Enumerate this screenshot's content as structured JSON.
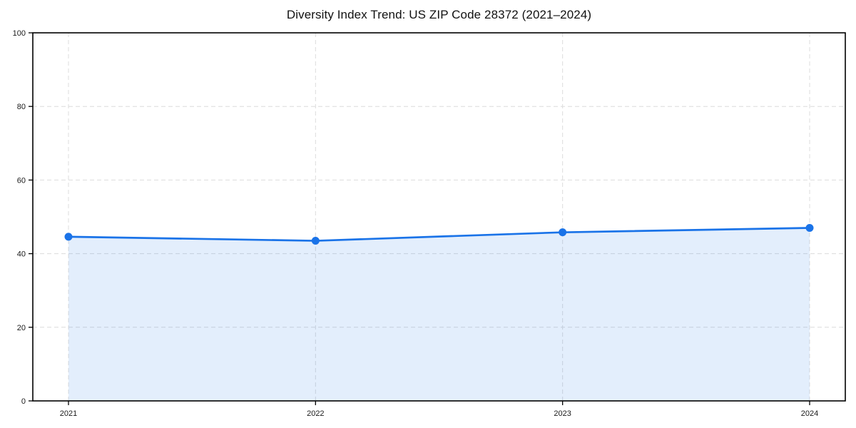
{
  "chart_data": {
    "type": "line",
    "title": "Diversity Index Trend: US ZIP Code 28372 (2021–2024)",
    "x": [
      "2021",
      "2022",
      "2023",
      "2024"
    ],
    "values": [
      44.6,
      43.5,
      45.8,
      47.0
    ],
    "xlabel": "",
    "ylabel": "",
    "ylim": [
      0,
      100
    ],
    "yticks": [
      0,
      20,
      40,
      60,
      80,
      100
    ],
    "grid": "dashed-both-axes",
    "legend": "none",
    "marker": "circle",
    "area_fill": true,
    "colors": {
      "line": "#1a73e8",
      "fill": "rgba(26,115,232,0.12)",
      "grid": "#dcdcdc",
      "axis": "#000000",
      "tick_text": "#1a1a1a"
    }
  }
}
